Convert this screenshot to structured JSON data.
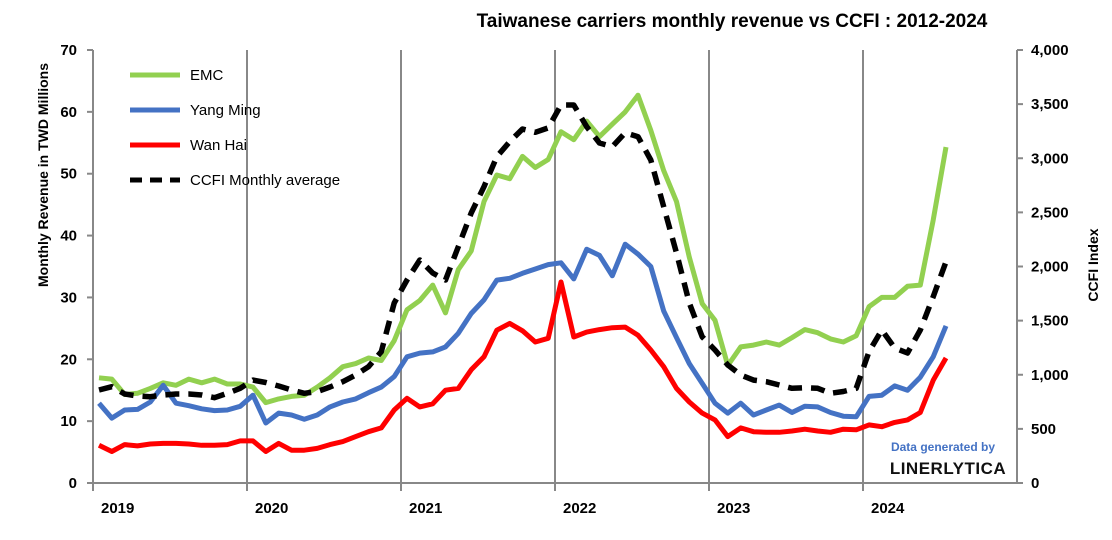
{
  "chart_data": {
    "type": "line",
    "title": "Taiwanese carriers monthly revenue vs CCFI : 2012-2024",
    "ylabel": "Monthly Revenue in TWD Millions",
    "y2label": "CCFI Index",
    "xlabel": "",
    "ylim": [
      0,
      70
    ],
    "y2lim": [
      0,
      4000
    ],
    "yticks": [
      "0",
      "10",
      "20",
      "30",
      "40",
      "50",
      "60",
      "70"
    ],
    "y2ticks": [
      "0",
      "500",
      "1,000",
      "1,500",
      "2,000",
      "2,500",
      "3,000",
      "3,500",
      "4,000"
    ],
    "xticks": [
      "2019",
      "2020",
      "2021",
      "2022",
      "2023",
      "2024"
    ],
    "x_start": "2019-01",
    "x_end": "2024-07",
    "grid": "vertical year lines",
    "legend_position": "top-left",
    "series": [
      {
        "name": "EMC",
        "axis": "left",
        "color": "#92d050",
        "dashed": false,
        "values": [
          17.0,
          16.8,
          14.3,
          14.5,
          15.3,
          16.2,
          15.8,
          16.8,
          16.2,
          16.8,
          16.0,
          16.0,
          15.5,
          13.0,
          13.6,
          14.0,
          14.2,
          15.5,
          17.0,
          18.8,
          19.3,
          20.2,
          19.8,
          23.0,
          28.0,
          29.5,
          32.0,
          27.5,
          34.5,
          37.5,
          45.5,
          49.8,
          49.2,
          52.8,
          51.0,
          52.3,
          56.8,
          55.5,
          58.5,
          56.0,
          58.0,
          60.0,
          62.7,
          57.0,
          50.5,
          45.5,
          36.5,
          29.0,
          26.3,
          19.0,
          22.0,
          22.3,
          22.8,
          22.3,
          23.5,
          24.8,
          24.3,
          23.3,
          22.8,
          23.8,
          28.5,
          30.0,
          30.0,
          31.8,
          32.0,
          42.5,
          54.3
        ]
      },
      {
        "name": "Yang Ming",
        "axis": "left",
        "color": "#4472c4",
        "dashed": false,
        "values": [
          12.9,
          10.5,
          11.8,
          11.9,
          13.1,
          15.8,
          12.9,
          12.5,
          12.0,
          11.7,
          11.8,
          12.4,
          14.2,
          9.7,
          11.3,
          11.0,
          10.3,
          11.0,
          12.3,
          13.1,
          13.6,
          14.6,
          15.5,
          17.2,
          20.4,
          21.0,
          21.2,
          22.0,
          24.2,
          27.4,
          29.6,
          32.8,
          33.1,
          33.9,
          34.6,
          35.3,
          35.6,
          33.0,
          37.8,
          36.8,
          33.5,
          38.6,
          37.0,
          35.0,
          27.8,
          23.5,
          19.3,
          16.1,
          12.9,
          11.3,
          12.9,
          11.0,
          11.8,
          12.6,
          11.4,
          12.4,
          12.3,
          11.4,
          10.8,
          10.7,
          14.0,
          14.2,
          15.7,
          15.0,
          17.1,
          20.4,
          25.4
        ]
      },
      {
        "name": "Wan Hai",
        "axis": "left",
        "color": "#ff0000",
        "dashed": false,
        "values": [
          6.1,
          5.1,
          6.2,
          6.0,
          6.3,
          6.4,
          6.4,
          6.3,
          6.1,
          6.1,
          6.2,
          6.8,
          6.8,
          5.1,
          6.4,
          5.3,
          5.3,
          5.6,
          6.2,
          6.7,
          7.5,
          8.3,
          8.9,
          11.8,
          13.7,
          12.3,
          12.8,
          15.0,
          15.3,
          18.3,
          20.4,
          24.7,
          25.8,
          24.6,
          22.8,
          23.4,
          32.5,
          23.6,
          24.4,
          24.8,
          25.1,
          25.2,
          23.9,
          21.5,
          18.8,
          15.3,
          13.1,
          11.3,
          10.2,
          7.5,
          8.9,
          8.3,
          8.2,
          8.2,
          8.4,
          8.7,
          8.4,
          8.2,
          8.7,
          8.6,
          9.4,
          9.1,
          9.8,
          10.2,
          11.4,
          16.6,
          20.2
        ]
      },
      {
        "name": "CCFI Monthly average",
        "axis": "right",
        "color": "#000000",
        "dashed": true,
        "values": [
          859,
          890,
          822,
          804,
          797,
          813,
          822,
          822,
          813,
          788,
          829,
          875,
          951,
          928,
          896,
          859,
          829,
          844,
          887,
          936,
          998,
          1074,
          1213,
          1663,
          1875,
          2060,
          1940,
          1875,
          2183,
          2494,
          2737,
          3014,
          3153,
          3270,
          3240,
          3280,
          3492,
          3492,
          3291,
          3141,
          3107,
          3236,
          3199,
          2984,
          2552,
          2125,
          1663,
          1351,
          1229,
          1090,
          998,
          951,
          936,
          905,
          875,
          880,
          875,
          829,
          845,
          875,
          1213,
          1413,
          1247,
          1201,
          1413,
          1721,
          2044
        ]
      }
    ]
  },
  "watermark": {
    "line1": "Data generated by",
    "line2": "LINERLYTICA"
  }
}
